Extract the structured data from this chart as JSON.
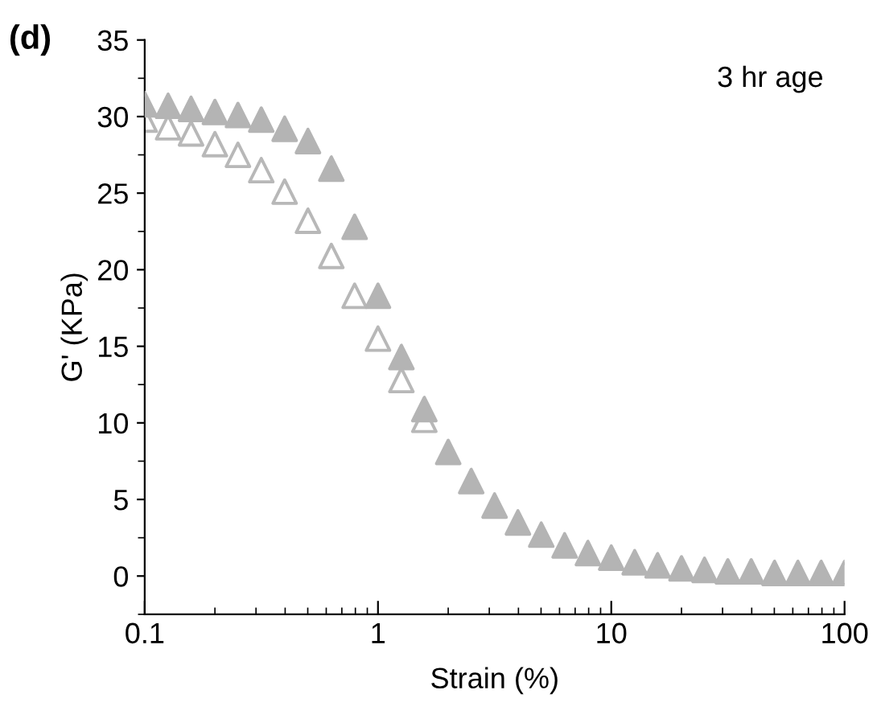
{
  "chart_data": {
    "type": "scatter",
    "xlabel": "Strain (%)",
    "ylabel": "G' (KPa)",
    "annotations": [
      "(d)",
      "3 hr age"
    ],
    "x": [
      0.1,
      0.126,
      0.158,
      0.2,
      0.251,
      0.316,
      0.398,
      0.501,
      0.631,
      0.794,
      1.0,
      1.26,
      1.58,
      2.0,
      2.51,
      3.16,
      3.98,
      5.01,
      6.31,
      7.94,
      10.0,
      12.6,
      15.8,
      20.0,
      25.1,
      31.6,
      39.8,
      50.1,
      63.1,
      79.4,
      100.0
    ],
    "series": [
      {
        "color": "#b4b4b4",
        "values": [
          30.8,
          30.7,
          30.5,
          30.3,
          30.1,
          29.8,
          29.2,
          28.4,
          26.6,
          22.8,
          18.3,
          14.3,
          10.9,
          8.1,
          6.2,
          4.6,
          3.5,
          2.7,
          2.0,
          1.5,
          1.2,
          0.9,
          0.7,
          0.5,
          0.4,
          0.3,
          0.3,
          0.2,
          0.2,
          0.2,
          0.2
        ]
      },
      {
        "color": "#b8b8b8",
        "values": [
          29.8,
          29.3,
          28.9,
          28.2,
          27.5,
          26.5,
          25.1,
          23.2,
          20.9,
          18.3,
          15.5,
          12.8,
          10.2,
          null,
          null,
          null,
          null,
          null,
          null,
          null,
          null,
          null,
          null,
          null,
          null,
          null,
          null,
          null,
          null,
          null,
          null
        ]
      }
    ],
    "log": "x",
    "xlim": [
      0.1,
      100
    ],
    "xticks": [
      0.1,
      1,
      10,
      100
    ],
    "ylim": [
      -2.5,
      35
    ],
    "yticks": [
      0,
      5,
      10,
      15,
      20,
      25,
      30,
      35
    ],
    "marker": "triangle",
    "grid": false,
    "legend": false
  }
}
